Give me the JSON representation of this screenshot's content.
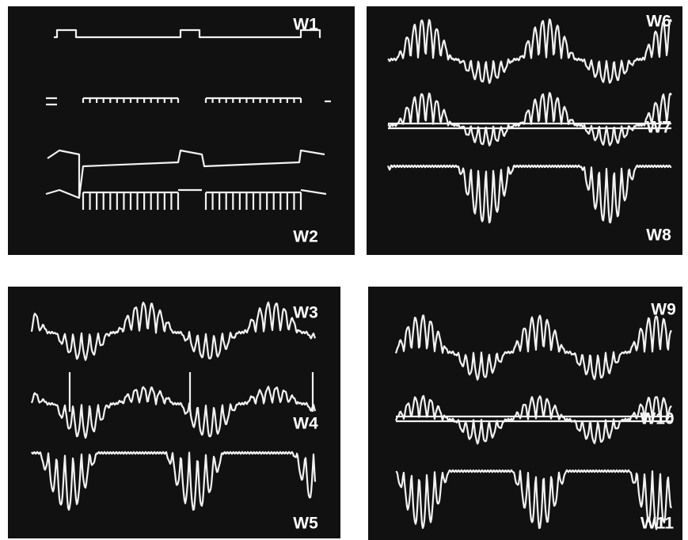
{
  "panels": [
    {
      "labels": [
        "W1",
        "W2"
      ]
    },
    {
      "labels": [
        "W6",
        "W7",
        "W8"
      ]
    },
    {
      "labels": [
        "W3",
        "W4",
        "W5"
      ]
    },
    {
      "labels": [
        "W9",
        "W10",
        "W11"
      ]
    }
  ]
}
